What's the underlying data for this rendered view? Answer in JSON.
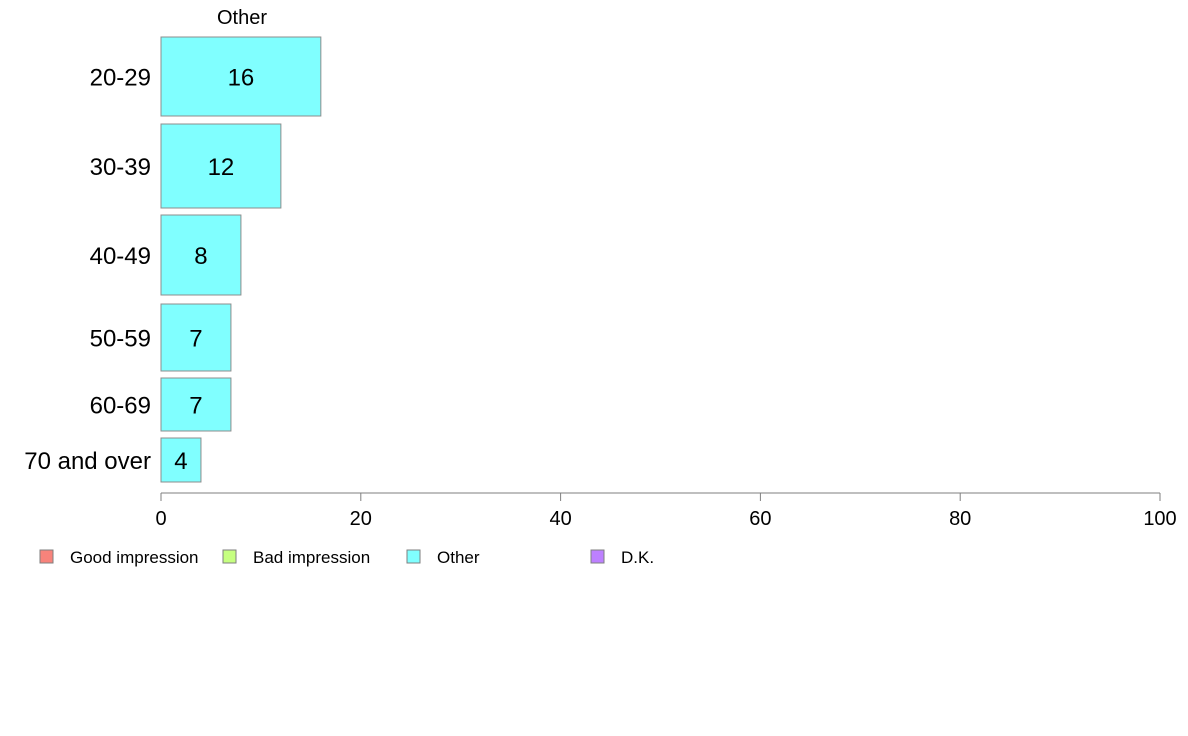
{
  "chart_data": {
    "type": "bar",
    "orientation": "horizontal",
    "stacked": true,
    "panel_label": "Other",
    "categories": [
      "20-29",
      "30-39",
      "40-49",
      "50-59",
      "60-69",
      "70 and over"
    ],
    "series": [
      {
        "name": "Other",
        "color": "#80ffff",
        "values": [
          16,
          12,
          8,
          7,
          7,
          4
        ]
      }
    ],
    "xlim": [
      0,
      100
    ],
    "xticks": [
      0,
      20,
      40,
      60,
      80,
      100
    ],
    "grid": false,
    "legend": {
      "placement": "bottom-left",
      "entries": [
        {
          "name": "Good impression",
          "color": "#f8837b"
        },
        {
          "name": "Bad impression",
          "color": "#c6ff80"
        },
        {
          "name": "Other",
          "color": "#80ffff"
        },
        {
          "name": "D.K.",
          "color": "#bd80ff"
        }
      ]
    }
  }
}
